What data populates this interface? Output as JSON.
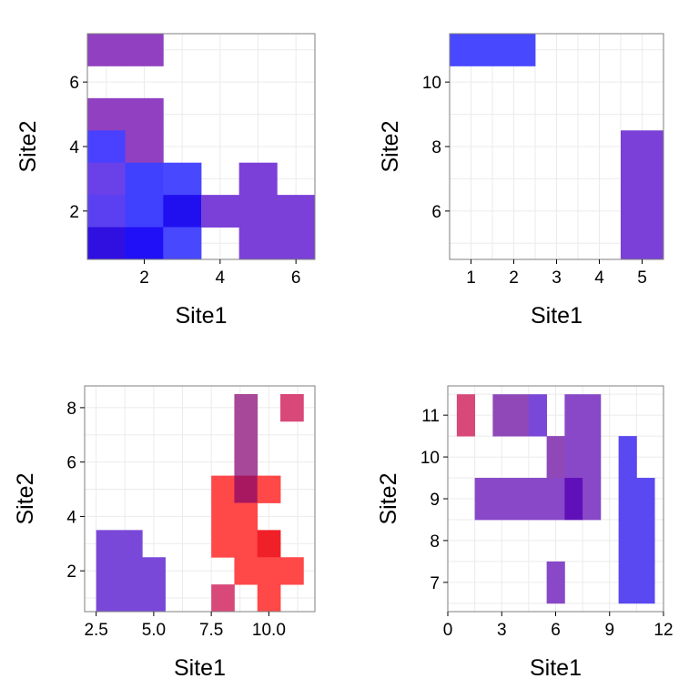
{
  "chart_data": [
    {
      "type": "heatmap",
      "xlabel": "Site1",
      "ylabel": "Site2",
      "xlim": [
        0.5,
        6.5
      ],
      "ylim": [
        0.5,
        7.5
      ],
      "xticks": [
        2,
        4,
        6
      ],
      "xtick_labels": [
        "2",
        "4",
        "6"
      ],
      "yticks": [
        2,
        4,
        6
      ],
      "ytick_labels": [
        "2",
        "4",
        "6"
      ],
      "grid": true,
      "cells": [
        {
          "x": 1,
          "y": 7,
          "color": "#9040c0"
        },
        {
          "x": 2,
          "y": 7,
          "color": "#9040c0"
        },
        {
          "x": 1,
          "y": 5,
          "color": "#9040c0"
        },
        {
          "x": 2,
          "y": 5,
          "color": "#9040c0"
        },
        {
          "x": 1,
          "y": 4,
          "color": "#4a40ff"
        },
        {
          "x": 2,
          "y": 4,
          "color": "#9040c0"
        },
        {
          "x": 1,
          "y": 3,
          "color": "#6a40e8"
        },
        {
          "x": 2,
          "y": 3,
          "color": "#4040ff"
        },
        {
          "x": 3,
          "y": 3,
          "color": "#4848ff"
        },
        {
          "x": 5,
          "y": 3,
          "color": "#7a40d8"
        },
        {
          "x": 1,
          "y": 2,
          "color": "#5a40f0"
        },
        {
          "x": 2,
          "y": 2,
          "color": "#4040ff"
        },
        {
          "x": 3,
          "y": 2,
          "color": "#2010f0"
        },
        {
          "x": 4,
          "y": 2,
          "color": "#7a40d8"
        },
        {
          "x": 5,
          "y": 2,
          "color": "#7a40d8"
        },
        {
          "x": 6,
          "y": 2,
          "color": "#7a40d8"
        },
        {
          "x": 1,
          "y": 1,
          "color": "#3010e0"
        },
        {
          "x": 2,
          "y": 1,
          "color": "#2010f8"
        },
        {
          "x": 3,
          "y": 1,
          "color": "#4848ff"
        },
        {
          "x": 5,
          "y": 1,
          "color": "#7a40d8"
        },
        {
          "x": 6,
          "y": 1,
          "color": "#7a40d8"
        }
      ]
    },
    {
      "type": "heatmap",
      "xlabel": "Site1",
      "ylabel": "Site2",
      "xlim": [
        0.5,
        5.5
      ],
      "ylim": [
        4.5,
        11.5
      ],
      "xticks": [
        1,
        2,
        3,
        4,
        5
      ],
      "xtick_labels": [
        "1",
        "2",
        "3",
        "4",
        "5"
      ],
      "yticks": [
        6,
        8,
        10
      ],
      "ytick_labels": [
        "6",
        "8",
        "10"
      ],
      "grid": true,
      "cells": [
        {
          "x": 1,
          "y": 11,
          "color": "#4848ff"
        },
        {
          "x": 2,
          "y": 11,
          "color": "#4848ff"
        },
        {
          "x": 5,
          "y": 8,
          "color": "#7a40d8"
        },
        {
          "x": 5,
          "y": 7,
          "color": "#7a40d8"
        },
        {
          "x": 5,
          "y": 6,
          "color": "#7a40d8"
        },
        {
          "x": 5,
          "y": 5,
          "color": "#7a40d8"
        }
      ]
    },
    {
      "type": "heatmap",
      "xlabel": "Site1",
      "ylabel": "Site2",
      "xlim": [
        2,
        12
      ],
      "ylim": [
        0.5,
        8.8
      ],
      "xticks": [
        2.5,
        5,
        7.5,
        10
      ],
      "xtick_labels": [
        "2.5",
        "5.0",
        "7.5",
        "10.0"
      ],
      "yticks": [
        2,
        4,
        6,
        8
      ],
      "ytick_labels": [
        "2",
        "4",
        "6",
        "8"
      ],
      "grid": true,
      "cells": [
        {
          "x": 3,
          "y": 3,
          "color": "#7a48d8"
        },
        {
          "x": 4,
          "y": 3,
          "color": "#7a48d8"
        },
        {
          "x": 3,
          "y": 2,
          "color": "#7a48d8"
        },
        {
          "x": 4,
          "y": 2,
          "color": "#7a48d8"
        },
        {
          "x": 5,
          "y": 2,
          "color": "#7a48d8"
        },
        {
          "x": 3,
          "y": 1,
          "color": "#7a48d8"
        },
        {
          "x": 4,
          "y": 1,
          "color": "#7a48d8"
        },
        {
          "x": 5,
          "y": 1,
          "color": "#7a48d8"
        },
        {
          "x": 9,
          "y": 8,
          "color": "#a84898"
        },
        {
          "x": 9,
          "y": 7,
          "color": "#a84898"
        },
        {
          "x": 9,
          "y": 6,
          "color": "#a84898"
        },
        {
          "x": 11,
          "y": 8,
          "color": "#d84878"
        },
        {
          "x": 8,
          "y": 5,
          "color": "#ff4848"
        },
        {
          "x": 9,
          "y": 5,
          "color": "#a81860"
        },
        {
          "x": 10,
          "y": 5,
          "color": "#ff4848"
        },
        {
          "x": 8,
          "y": 4,
          "color": "#ff4848"
        },
        {
          "x": 9,
          "y": 4,
          "color": "#ff4848"
        },
        {
          "x": 8,
          "y": 3,
          "color": "#ff4848"
        },
        {
          "x": 9,
          "y": 3,
          "color": "#ff4848"
        },
        {
          "x": 10,
          "y": 3,
          "color": "#f02028"
        },
        {
          "x": 9,
          "y": 2,
          "color": "#ff4848"
        },
        {
          "x": 10,
          "y": 2,
          "color": "#ff4848"
        },
        {
          "x": 11,
          "y": 2,
          "color": "#ff4848"
        },
        {
          "x": 8,
          "y": 1,
          "color": "#d84878"
        },
        {
          "x": 10,
          "y": 1,
          "color": "#ff4848"
        }
      ]
    },
    {
      "type": "heatmap",
      "xlabel": "Site1",
      "ylabel": "Site2",
      "xlim": [
        0,
        12
      ],
      "ylim": [
        6.3,
        11.7
      ],
      "xticks": [
        0,
        3,
        6,
        9,
        12
      ],
      "xtick_labels": [
        "0",
        "3",
        "6",
        "9",
        "12"
      ],
      "yticks": [
        7,
        8,
        9,
        10,
        11
      ],
      "ytick_labels": [
        "7",
        "8",
        "9",
        "10",
        "11"
      ],
      "grid": true,
      "cells": [
        {
          "x": 1,
          "y": 11,
          "color": "#d84878"
        },
        {
          "x": 3,
          "y": 11,
          "color": "#9048b8"
        },
        {
          "x": 4,
          "y": 11,
          "color": "#9048b8"
        },
        {
          "x": 5,
          "y": 11,
          "color": "#7a48d8"
        },
        {
          "x": 7,
          "y": 11,
          "color": "#8848c8"
        },
        {
          "x": 8,
          "y": 11,
          "color": "#8848c8"
        },
        {
          "x": 6,
          "y": 10,
          "color": "#9048b8"
        },
        {
          "x": 7,
          "y": 10,
          "color": "#8848c8"
        },
        {
          "x": 8,
          "y": 10,
          "color": "#8848c8"
        },
        {
          "x": 10,
          "y": 10,
          "color": "#5a48f0"
        },
        {
          "x": 2,
          "y": 9,
          "color": "#8848c8"
        },
        {
          "x": 3,
          "y": 9,
          "color": "#8848c8"
        },
        {
          "x": 4,
          "y": 9,
          "color": "#8848c8"
        },
        {
          "x": 5,
          "y": 9,
          "color": "#8848c8"
        },
        {
          "x": 6,
          "y": 9,
          "color": "#8848c8"
        },
        {
          "x": 7,
          "y": 9,
          "color": "#6010b8"
        },
        {
          "x": 8,
          "y": 9,
          "color": "#8848c8"
        },
        {
          "x": 10,
          "y": 9,
          "color": "#5a48f0"
        },
        {
          "x": 11,
          "y": 9,
          "color": "#5a48f0"
        },
        {
          "x": 10,
          "y": 8,
          "color": "#5a48f0"
        },
        {
          "x": 11,
          "y": 8,
          "color": "#5a48f0"
        },
        {
          "x": 6,
          "y": 7,
          "color": "#8848c8"
        },
        {
          "x": 10,
          "y": 7,
          "color": "#5a48f0"
        },
        {
          "x": 11,
          "y": 7,
          "color": "#5a48f0"
        }
      ]
    }
  ],
  "style": {
    "grid_color": "#ebebeb",
    "panel_border_color": "#7f7f7f",
    "background_color": "#ffffff"
  }
}
